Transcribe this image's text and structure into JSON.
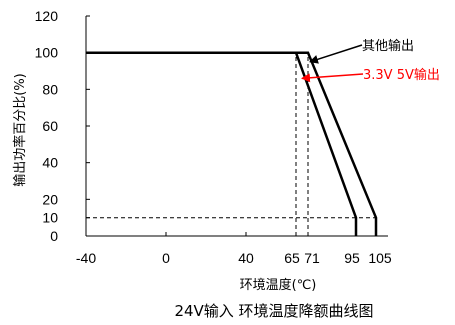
{
  "chart_data": {
    "type": "line",
    "title": "24V输入 环境温度降额曲线图",
    "xlabel": "环境温度(℃)",
    "ylabel": "输出功率百分比(%)",
    "xlim": [
      -40,
      105
    ],
    "ylim": [
      0,
      120
    ],
    "x_ticks": [
      -40,
      0,
      40,
      65,
      71,
      95,
      105
    ],
    "x_tick_labels": [
      "-40",
      "0",
      "40",
      "65",
      "71",
      "95",
      "105"
    ],
    "y_ticks": [
      0,
      10,
      20,
      40,
      60,
      80,
      100,
      120
    ],
    "y_tick_labels": [
      "0",
      "10",
      "20",
      "40",
      "60",
      "80",
      "100",
      "120"
    ],
    "grid": false,
    "series": [
      {
        "name": "3.3V 5V输出",
        "color": "#000000",
        "points": [
          [
            -40,
            100
          ],
          [
            65,
            100
          ],
          [
            95,
            10
          ],
          [
            95,
            0
          ]
        ]
      },
      {
        "name": "其他输出",
        "color": "#000000",
        "points": [
          [
            -40,
            100
          ],
          [
            71,
            100
          ],
          [
            105,
            10
          ],
          [
            105,
            0
          ]
        ]
      }
    ],
    "reference_lines": [
      {
        "points": [
          [
            -40,
            10
          ],
          [
            105,
            10
          ]
        ],
        "style": "dashed"
      },
      {
        "points": [
          [
            65,
            0
          ],
          [
            65,
            100
          ]
        ],
        "style": "dashed"
      },
      {
        "points": [
          [
            71,
            0
          ],
          [
            71,
            100
          ]
        ],
        "style": "dashed"
      }
    ],
    "annotations": [
      {
        "text": "其他输出",
        "color": "#000000",
        "arrow_color": "#000000",
        "target": [
          72,
          95
        ]
      },
      {
        "text": "3.3V 5V输出",
        "color": "#ff0000",
        "arrow_color": "#ff0000",
        "target": [
          68,
          86
        ]
      }
    ]
  }
}
